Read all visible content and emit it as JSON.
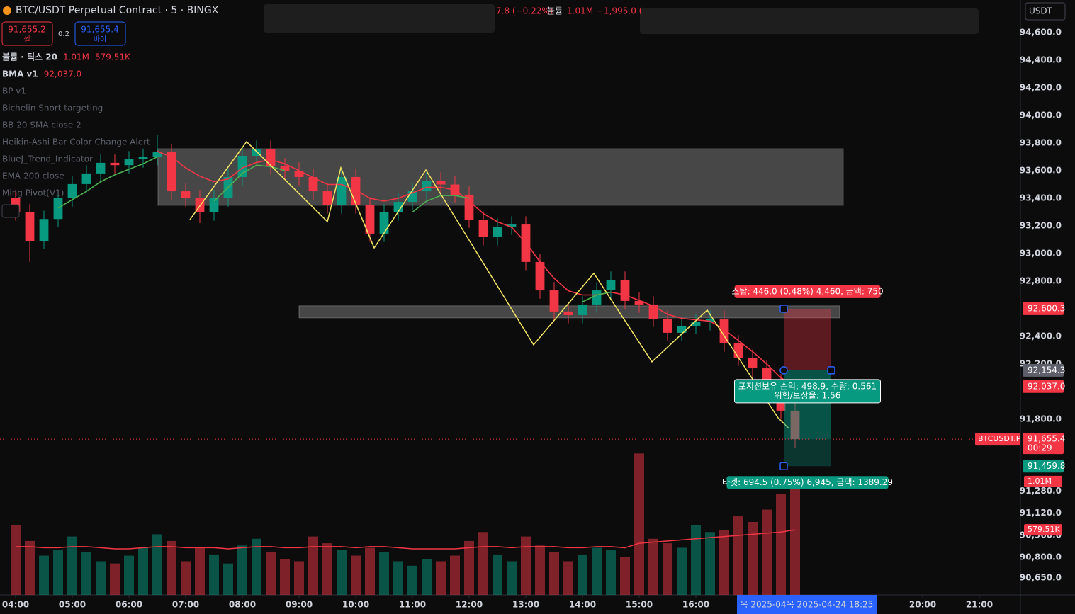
{
  "chart_data": {
    "type": "candlestick",
    "x": [
      4,
      4.25,
      4.5,
      4.75,
      5,
      5.25,
      5.5,
      5.75,
      6,
      6.25,
      6.5,
      6.75,
      7,
      7.25,
      7.5,
      7.75,
      8,
      8.25,
      8.5,
      8.75,
      9,
      9.25,
      9.5,
      9.75,
      10,
      10.25,
      10.5,
      10.75,
      11,
      11.25,
      11.5,
      11.75,
      12,
      12.25,
      12.5,
      12.75,
      13,
      13.25,
      13.5,
      13.75,
      14,
      14.25,
      14.5,
      14.75,
      15,
      15.25,
      15.5,
      15.75,
      16,
      16.25,
      16.5,
      16.75,
      17,
      17.25,
      17.5,
      17.75
    ],
    "open": [
      93400,
      93298,
      93092,
      93250,
      93400,
      93503,
      93580,
      93657,
      93640,
      93682,
      93700,
      93734,
      93451,
      93400,
      93298,
      93400,
      93554,
      93708,
      93759,
      93631,
      93600,
      93554,
      93451,
      93349,
      93554,
      93349,
      93144,
      93298,
      93374,
      93451,
      93528,
      93500,
      93426,
      93246,
      93118,
      93195,
      93210,
      92939,
      92733,
      92580,
      92554,
      92631,
      92733,
      92810,
      92657,
      92631,
      92528,
      92426,
      92477,
      92503,
      92528,
      92349,
      92246,
      92169,
      92067,
      91862
    ],
    "high": [
      93460,
      93358,
      93310,
      93460,
      93563,
      93640,
      93717,
      93717,
      93742,
      93760,
      93860,
      93794,
      93511,
      93460,
      93460,
      93614,
      93768,
      93819,
      93819,
      93691,
      93660,
      93614,
      93511,
      93614,
      93614,
      93409,
      93358,
      93434,
      93511,
      93588,
      93588,
      93560,
      93486,
      93306,
      93255,
      93270,
      93270,
      92999,
      92793,
      92640,
      92691,
      92793,
      92870,
      92870,
      92717,
      92691,
      92588,
      92537,
      92563,
      92588,
      92588,
      92409,
      92306,
      92229,
      92127,
      91922
    ],
    "low": [
      93238,
      92940,
      93032,
      93190,
      93340,
      93443,
      93520,
      93580,
      93580,
      93622,
      93640,
      93391,
      93340,
      93221,
      93238,
      93340,
      93494,
      93648,
      93571,
      93540,
      93494,
      93391,
      93289,
      93289,
      93289,
      93084,
      93084,
      93238,
      93314,
      93391,
      93440,
      93366,
      93186,
      93058,
      93058,
      93135,
      92879,
      92673,
      92520,
      92494,
      92494,
      92571,
      92673,
      92597,
      92571,
      92468,
      92366,
      92366,
      92417,
      92443,
      92289,
      92186,
      92109,
      92007,
      91802,
      91595
    ],
    "close": [
      93298,
      93092,
      93250,
      93400,
      93503,
      93580,
      93657,
      93640,
      93682,
      93700,
      93734,
      93451,
      93400,
      93298,
      93400,
      93554,
      93708,
      93759,
      93631,
      93600,
      93554,
      93451,
      93349,
      93554,
      93349,
      93144,
      93298,
      93374,
      93451,
      93528,
      93500,
      93426,
      93246,
      93118,
      93195,
      93210,
      92939,
      92733,
      92580,
      92554,
      92631,
      92733,
      92810,
      92657,
      92631,
      92528,
      92426,
      92477,
      92503,
      92528,
      92349,
      92246,
      92169,
      92067,
      91862,
      91655.4
    ],
    "up_color": "#089981",
    "down_color": "#f23645",
    "volume": [
      620000,
      480000,
      350000,
      400000,
      520000,
      380000,
      300000,
      280000,
      350000,
      420000,
      540000,
      480000,
      300000,
      420000,
      360000,
      280000,
      440000,
      500000,
      380000,
      320000,
      300000,
      520000,
      460000,
      400000,
      350000,
      420000,
      380000,
      300000,
      260000,
      320000,
      300000,
      350000,
      480000,
      560000,
      360000,
      300000,
      520000,
      440000,
      380000,
      300000,
      360000,
      420000,
      400000,
      340000,
      1260000,
      500000,
      460000,
      420000,
      620000,
      560000,
      580000,
      700000,
      650000,
      760000,
      900000,
      1010000
    ],
    "volume_ma": [
      430000,
      430000,
      420000,
      420000,
      430000,
      430000,
      420000,
      410000,
      410000,
      420000,
      430000,
      430000,
      420000,
      420000,
      420000,
      410000,
      420000,
      430000,
      430000,
      420000,
      420000,
      430000,
      430000,
      430000,
      420000,
      430000,
      430000,
      420000,
      410000,
      410000,
      410000,
      410000,
      420000,
      430000,
      430000,
      420000,
      430000,
      430000,
      430000,
      420000,
      420000,
      430000,
      430000,
      420000,
      460000,
      470000,
      480000,
      490000,
      500000,
      510000,
      520000,
      530000,
      540000,
      550000,
      560000,
      579510
    ],
    "vlim": [
      0,
      1060000
    ],
    "lines": [
      {
        "name": "BMA v1",
        "color": "#f23645",
        "values": [
          null,
          null,
          null,
          null,
          null,
          null,
          null,
          null,
          null,
          null,
          93740,
          93700,
          93620,
          93560,
          93520,
          93540,
          93620,
          93660,
          93680,
          93650,
          93600,
          93550,
          93500,
          93500,
          93460,
          93400,
          93380,
          93400,
          93440,
          93480,
          93480,
          93460,
          93380,
          93290,
          93230,
          93190,
          93080,
          92940,
          92820,
          92730,
          92700,
          92700,
          92720,
          92700,
          92660,
          92620,
          92560,
          92530,
          92520,
          92510,
          92450,
          92370,
          92290,
          92200,
          92100,
          92037
        ]
      },
      {
        "color": "#4caf50",
        "values": [
          null,
          null,
          null,
          93330,
          93390,
          93450,
          93520,
          93570,
          93610,
          93650,
          93700,
          null,
          null,
          null,
          93380,
          93480,
          93580,
          93640,
          93630,
          93600,
          null,
          null,
          null,
          null,
          null,
          null,
          null,
          null,
          93300,
          93380,
          93420,
          93420,
          93400,
          null,
          null,
          null,
          null,
          null,
          null,
          null,
          92650,
          92700,
          92720,
          null,
          null,
          null,
          null,
          null,
          null,
          null,
          null,
          null,
          null,
          null,
          null,
          null
        ]
      }
    ],
    "zigzag": {
      "color": "#f5e663",
      "x": [
        7.075,
        8.075,
        9.5,
        9.7375,
        10.325,
        11.2375,
        13.1375,
        14.2,
        15.225,
        16.2,
        17.45,
        17.64
      ],
      "y": [
        93246,
        93810,
        93231,
        93621,
        93041,
        93605,
        92339,
        92857,
        92216,
        92590,
        91810,
        91734
      ]
    },
    "zones": [
      {
        "x": [
          6.5125,
          18.6
        ],
        "y": [
          93759,
          93349
        ]
      },
      {
        "x": [
          9.0,
          18.5375
        ],
        "y": [
          92621,
          92534
        ]
      }
    ],
    "position": {
      "x_start": 17.55,
      "x_end": 18.3875,
      "stop": 92600.3,
      "entry": 92154.3,
      "target": 91459.8,
      "stop_label": "스탑: 446.0 (0.48%) 4,460, 금액: 750",
      "pnl_label": "포지션보유 손익: 498.9, 수량: 0.561",
      "ratio_label": "위험/보상율: 1.56",
      "target_label": "타겟: 694.5 (0.75%) 6,945, 금액: 1389.29"
    },
    "xlim": [
      3.725,
      21.725
    ],
    "ylim": [
      90528,
      94836
    ],
    "xticks": [
      {
        "value": 4,
        "label": "04:00"
      },
      {
        "value": 5,
        "label": "05:00"
      },
      {
        "value": 6,
        "label": "06:00"
      },
      {
        "value": 7,
        "label": "07:00"
      },
      {
        "value": 8,
        "label": "08:00"
      },
      {
        "value": 9,
        "label": "09:00"
      },
      {
        "value": 10,
        "label": "10:00"
      },
      {
        "value": 11,
        "label": "11:00"
      },
      {
        "value": 12,
        "label": "12:00"
      },
      {
        "value": 13,
        "label": "13:00"
      },
      {
        "value": 14,
        "label": "14:00"
      },
      {
        "value": 15,
        "label": "15:00"
      },
      {
        "value": 16,
        "label": "16:00"
      },
      {
        "value": 20,
        "label": "20:00"
      },
      {
        "value": 21,
        "label": "21:00"
      }
    ],
    "yticks": [
      {
        "value": 94600,
        "label": "94,600.0"
      },
      {
        "value": 94400,
        "label": "94,400.0"
      },
      {
        "value": 94200,
        "label": "94,200.0"
      },
      {
        "value": 94000,
        "label": "94,000.0"
      },
      {
        "value": 93800,
        "label": "93,800.0"
      },
      {
        "value": 93600,
        "label": "93,600.0"
      },
      {
        "value": 93400,
        "label": "93,400.0"
      },
      {
        "value": 93200,
        "label": "93,200.0"
      },
      {
        "value": 93000,
        "label": "93,000.0"
      },
      {
        "value": 92800,
        "label": "92,800.0"
      },
      {
        "value": 92400,
        "label": "92,400.0"
      },
      {
        "value": 92200,
        "label": "92,200.0"
      },
      {
        "value": 91800,
        "label": "91,800.0"
      },
      {
        "value": 91280,
        "label": "91,280.0"
      },
      {
        "value": 91120,
        "label": "91,120.0"
      },
      {
        "value": 90960,
        "label": "90,960.0"
      },
      {
        "value": 90800,
        "label": "90,800.0"
      },
      {
        "value": 90650,
        "label": "90,650.0"
      }
    ],
    "price_tags": [
      {
        "value": 92600.3,
        "label": "92,600.3",
        "color": "#f23645"
      },
      {
        "value": 92154.3,
        "label": "92,154.3",
        "color": "#5d606b"
      },
      {
        "value": 92037.0,
        "label": "92,037.0",
        "color": "#f23645"
      },
      {
        "value": 91655.4,
        "label": "91,655.4",
        "color": "#f23645"
      },
      {
        "value": 91459.8,
        "label": "91,459.8",
        "color": "#089981"
      }
    ],
    "last_price": {
      "value": 91655.4,
      "countdown": "00:29",
      "symbol": "BTCUSDT.P",
      "color": "#f23645"
    },
    "volume_tags": [
      {
        "value": 1010000,
        "label": "1.01M",
        "color": "#f23645"
      },
      {
        "value": 579510,
        "label": "579.51K",
        "color": "#f23645"
      }
    ]
  },
  "ui": {
    "symbol": "BTC/USDT Perpetual Contract · 5 · BINGX",
    "sell_price": "91,655.2",
    "sell_label": "셀",
    "spread": "0.2",
    "buy_price": "91,655.4",
    "buy_label": "바이",
    "top_status": [
      "7.8 (−0.22%)",
      "볼륨",
      "1.01M",
      "−1,995.0 ("
    ],
    "indicators": [
      {
        "name": "볼륨 · 틱스 20",
        "values": [
          "1.01M",
          "579.51K"
        ]
      },
      {
        "name": "BMA v1",
        "values": [
          "92,037.0"
        ]
      },
      {
        "name": "BP v1",
        "hidden": true
      },
      {
        "name": "Bichelin Short targeting",
        "hidden": true
      },
      {
        "name": "BB 20 SMA close 2",
        "hidden": true
      },
      {
        "name": "Heikin-Ashi Bar Color Change Alert",
        "hidden": true
      },
      {
        "name": "BlueJ_Trend_Indicator",
        "hidden": true
      },
      {
        "name": "EMA 200 close",
        "hidden": true
      },
      {
        "name": "Ming Pivot(V1)",
        "hidden": true
      }
    ],
    "currency": "USDT",
    "date_labels": [
      "목 2025-04",
      "목 2025-04-24",
      "18:25"
    ]
  }
}
